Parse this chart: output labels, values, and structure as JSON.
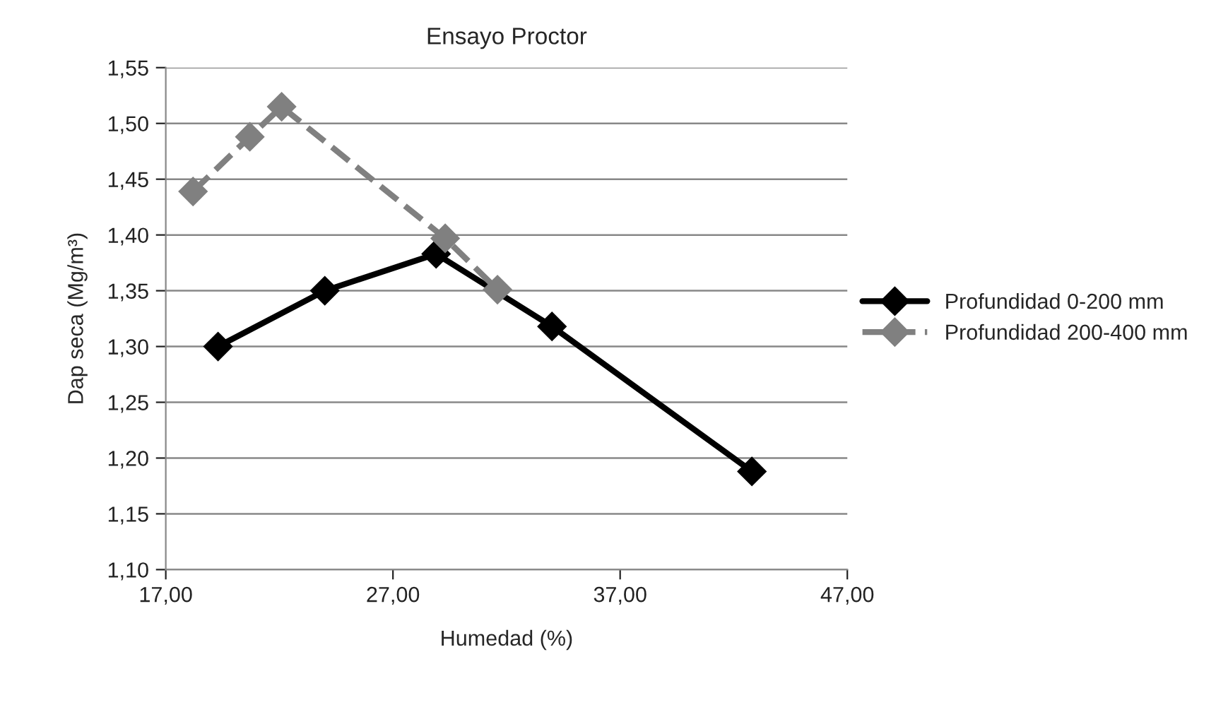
{
  "chart_data": {
    "type": "line",
    "title": "Ensayo Proctor",
    "xlabel": "Humedad (%)",
    "ylabel": "Dap seca (Mg/m³)",
    "series": [
      {
        "name": "Profundidad 0-200 mm",
        "color": "#000000",
        "line_style": "solid",
        "x": [
          19.3,
          24.0,
          28.9,
          34.0,
          42.8
        ],
        "values": [
          1.3,
          1.35,
          1.383,
          1.318,
          1.188
        ]
      },
      {
        "name": "Profundidad 200-400 mm",
        "color": "#808080",
        "line_style": "dashed",
        "x": [
          18.2,
          20.7,
          22.1,
          29.3,
          31.6
        ],
        "values": [
          1.439,
          1.488,
          1.515,
          1.397,
          1.351
        ]
      }
    ],
    "xlim": [
      17,
      47
    ],
    "xticks": [
      {
        "value": 17,
        "label": "17,00"
      },
      {
        "value": 27,
        "label": "27,00"
      },
      {
        "value": 37,
        "label": "37,00"
      },
      {
        "value": 47,
        "label": "47,00"
      }
    ],
    "ylim": [
      1.1,
      1.55
    ],
    "yticks": [
      {
        "value": 1.1,
        "label": "1,10"
      },
      {
        "value": 1.15,
        "label": "1,15"
      },
      {
        "value": 1.2,
        "label": "1,20"
      },
      {
        "value": 1.25,
        "label": "1,25"
      },
      {
        "value": 1.3,
        "label": "1,30"
      },
      {
        "value": 1.35,
        "label": "1,35"
      },
      {
        "value": 1.4,
        "label": "1,40"
      },
      {
        "value": 1.45,
        "label": "1,45"
      },
      {
        "value": 1.5,
        "label": "1,50"
      },
      {
        "value": 1.55,
        "label": "1,55"
      }
    ],
    "grid": "y",
    "legend": "right",
    "marker": "diamond"
  }
}
